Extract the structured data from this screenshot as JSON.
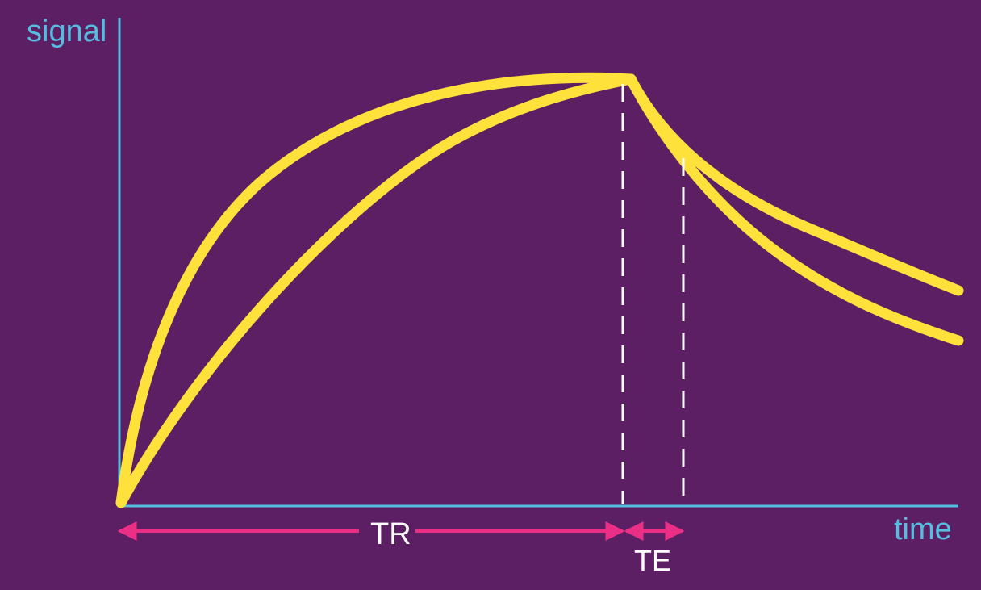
{
  "axes": {
    "y_label": "signal",
    "x_label": "time"
  },
  "intervals": {
    "tr_label": "TR",
    "te_label": "TE"
  },
  "colors": {
    "background": "#5d1f63",
    "axis": "#55bde0",
    "curve": "#ffe13c",
    "arrow": "#ec2f86",
    "dashed_marker": "#ffffff"
  }
}
